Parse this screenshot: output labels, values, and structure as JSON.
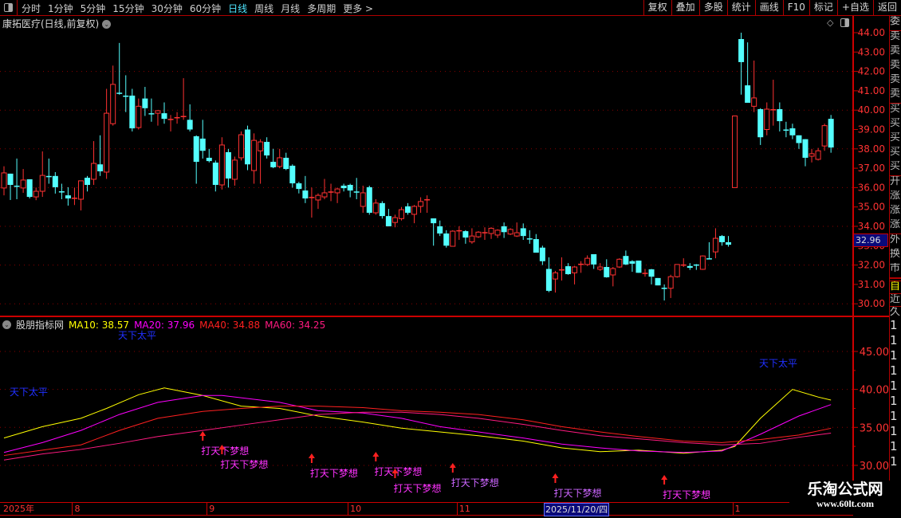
{
  "toolbar": {
    "periods": [
      "分时",
      "1分钟",
      "5分钟",
      "15分钟",
      "30分钟",
      "60分钟",
      "日线",
      "周线",
      "月线",
      "多周期",
      "更多 >"
    ],
    "active_period": "日线",
    "buttons": [
      "复权",
      "叠加",
      "多股",
      "统计",
      "画线",
      "F10",
      "标记",
      "+自选",
      "返回"
    ]
  },
  "chart": {
    "title": "康拓医疗(日线,前复权)",
    "last_price": "32.96",
    "price_axis": [
      "44.00",
      "43.00",
      "42.00",
      "41.00",
      "40.00",
      "39.00",
      "38.00",
      "37.00",
      "36.00",
      "35.00",
      "34.00",
      "33.00",
      "32.00",
      "31.00",
      "30.00"
    ],
    "colors": {
      "up": "#ff3232",
      "down": "#54ffff",
      "grid": "#8b0000",
      "axis": "#ff3333"
    },
    "candles_ohlc": [
      [
        35.98,
        37.1,
        35.6,
        36.76
      ],
      [
        36.72,
        36.72,
        35.36,
        36.14
      ],
      [
        36.1,
        37.5,
        35.4,
        36.1
      ],
      [
        35.98,
        36.96,
        35.73,
        36.39
      ],
      [
        36.43,
        36.43,
        35.44,
        35.52
      ],
      [
        35.52,
        36.0,
        35.35,
        35.81
      ],
      [
        35.81,
        37.87,
        35.52,
        36.63
      ],
      [
        36.6,
        37.5,
        36.2,
        36.6
      ],
      [
        36.6,
        36.8,
        35.69,
        36.02
      ],
      [
        35.81,
        36.2,
        35.4,
        35.81
      ],
      [
        35.6,
        36.02,
        35.07,
        35.44
      ],
      [
        35.48,
        36.0,
        35.1,
        35.48
      ],
      [
        35.4,
        36.3,
        34.82,
        36.35
      ],
      [
        36.51,
        36.6,
        35.8,
        36.14
      ],
      [
        36.43,
        38.4,
        36.14,
        37.25
      ],
      [
        37.2,
        38.7,
        36.6,
        36.84
      ],
      [
        36.8,
        41.1,
        36.45,
        39.84
      ],
      [
        39.3,
        42.3,
        39.2,
        41.33
      ],
      [
        40.9,
        43.47,
        40.8,
        40.9
      ],
      [
        40.75,
        41.8,
        39.9,
        40.75
      ],
      [
        40.75,
        41.1,
        38.9,
        39.06
      ],
      [
        39.1,
        40.6,
        39.0,
        40.2
      ],
      [
        40.6,
        41.2,
        39.7,
        40.1
      ],
      [
        39.84,
        40.6,
        39.4,
        39.84
      ],
      [
        39.84,
        40.0,
        39.2,
        39.97
      ],
      [
        39.84,
        40.4,
        39.3,
        39.55
      ],
      [
        39.55,
        39.75,
        38.9,
        39.55
      ],
      [
        39.64,
        39.9,
        39.3,
        39.64
      ],
      [
        39.7,
        41.65,
        39.5,
        39.7
      ],
      [
        39.5,
        40.3,
        38.9,
        39.0
      ],
      [
        38.65,
        38.7,
        36.2,
        37.33
      ],
      [
        38.53,
        39.5,
        37.5,
        37.9
      ],
      [
        37.54,
        38.0,
        37.3,
        37.37
      ],
      [
        37.29,
        37.4,
        35.8,
        36.14
      ],
      [
        36.14,
        38.6,
        35.9,
        38.2
      ],
      [
        37.83,
        38.0,
        36.0,
        36.47
      ],
      [
        36.43,
        37.6,
        36.1,
        37.42
      ],
      [
        37.54,
        38.9,
        37.4,
        38.73
      ],
      [
        39.0,
        39.2,
        36.9,
        37.2
      ],
      [
        36.88,
        38.8,
        36.2,
        38.44
      ],
      [
        37.9,
        38.5,
        36.2,
        38.36
      ],
      [
        38.36,
        38.6,
        37.5,
        37.66
      ],
      [
        37.33,
        38.0,
        37.0,
        37.05
      ],
      [
        37.09,
        38.0,
        37.0,
        37.54
      ],
      [
        37.54,
        37.8,
        36.9,
        36.96
      ],
      [
        37.13,
        37.2,
        36.0,
        36.22
      ],
      [
        36.22,
        36.3,
        35.7,
        35.93
      ],
      [
        35.85,
        36.6,
        35.2,
        35.44
      ],
      [
        35.52,
        36.0,
        34.45,
        35.52
      ],
      [
        35.36,
        35.7,
        34.9,
        35.6
      ],
      [
        35.52,
        36.45,
        35.4,
        35.73
      ],
      [
        35.8,
        36.2,
        35.3,
        35.8
      ],
      [
        35.73,
        36.0,
        35.2,
        35.93
      ],
      [
        36.1,
        36.2,
        35.8,
        35.97
      ],
      [
        36.14,
        36.2,
        35.5,
        35.85
      ],
      [
        35.8,
        36.5,
        35.4,
        35.8
      ],
      [
        35.03,
        36.1,
        34.7,
        35.73
      ],
      [
        36.02,
        36.1,
        34.6,
        34.7
      ],
      [
        34.7,
        35.4,
        34.6,
        35.2
      ],
      [
        35.2,
        35.3,
        34.4,
        34.53
      ],
      [
        34.53,
        34.9,
        34.0,
        34.0
      ],
      [
        34.2,
        34.6,
        33.95,
        34.45
      ],
      [
        34.4,
        35.0,
        34.3,
        34.86
      ],
      [
        35.03,
        35.2,
        34.6,
        34.7
      ],
      [
        34.62,
        35.1,
        34.16,
        35.03
      ],
      [
        35.03,
        35.5,
        34.7,
        35.28
      ],
      [
        35.4,
        35.6,
        34.7,
        35.4
      ],
      [
        34.41,
        34.41,
        33.0,
        34.16
      ],
      [
        34.0,
        34.3,
        33.5,
        33.63
      ],
      [
        33.63,
        33.8,
        32.9,
        33.0
      ],
      [
        32.97,
        33.8,
        32.95,
        33.75
      ],
      [
        33.8,
        34.0,
        33.3,
        33.8
      ],
      [
        33.75,
        33.8,
        33.1,
        33.42
      ],
      [
        33.2,
        33.9,
        33.1,
        33.5
      ],
      [
        33.46,
        33.75,
        33.4,
        33.7
      ],
      [
        33.7,
        33.95,
        33.3,
        33.7
      ],
      [
        33.63,
        33.95,
        33.35,
        33.9
      ],
      [
        33.55,
        33.85,
        33.4,
        33.8
      ],
      [
        34.0,
        34.2,
        33.4,
        33.7
      ],
      [
        33.6,
        33.9,
        33.55,
        33.84
      ],
      [
        33.5,
        34.2,
        33.45,
        33.67
      ],
      [
        33.9,
        34.15,
        33.3,
        33.5
      ],
      [
        33.38,
        33.8,
        33.1,
        33.38
      ],
      [
        33.34,
        33.6,
        33.3,
        32.64
      ],
      [
        32.9,
        33.0,
        32.0,
        32.2
      ],
      [
        31.8,
        32.4,
        30.6,
        30.67
      ],
      [
        31.28,
        31.7,
        30.58,
        31.6
      ],
      [
        31.78,
        32.4,
        31.2,
        31.78
      ],
      [
        31.94,
        32.1,
        31.5,
        31.53
      ],
      [
        31.6,
        31.95,
        31.0,
        31.9
      ],
      [
        32.07,
        32.2,
        31.6,
        32.07
      ],
      [
        32.03,
        32.5,
        31.95,
        32.35
      ],
      [
        32.56,
        32.56,
        31.8,
        32.03
      ],
      [
        31.78,
        32.1,
        31.7,
        31.9
      ],
      [
        31.9,
        32.3,
        31.35,
        31.37
      ],
      [
        31.49,
        31.9,
        30.9,
        31.82
      ],
      [
        31.9,
        32.35,
        31.85,
        32.3
      ],
      [
        32.47,
        32.75,
        32.0,
        32.03
      ],
      [
        32.2,
        32.25,
        31.65,
        32.07
      ],
      [
        32.23,
        32.23,
        31.6,
        31.6
      ],
      [
        31.6,
        31.8,
        31.4,
        31.6
      ],
      [
        31.78,
        31.8,
        31.0,
        31.4
      ],
      [
        31.33,
        31.33,
        30.95,
        30.95
      ],
      [
        30.83,
        31.0,
        30.17,
        30.83
      ],
      [
        30.8,
        31.5,
        30.3,
        31.4
      ],
      [
        31.4,
        32.03,
        31.35,
        32.03
      ],
      [
        32.03,
        32.35,
        31.9,
        32.03
      ],
      [
        31.95,
        32.1,
        31.75,
        31.86
      ],
      [
        32.03,
        32.05,
        31.75,
        31.97
      ],
      [
        31.78,
        32.5,
        31.75,
        32.47
      ],
      [
        32.35,
        33.18,
        32.3,
        32.35
      ],
      [
        32.68,
        33.9,
        32.35,
        33.38
      ],
      [
        33.5,
        33.55,
        33.0,
        33.18
      ],
      [
        33.18,
        33.5,
        32.95,
        33.05
      ],
      [
        36.0,
        39.7,
        36.0,
        39.7
      ],
      [
        43.67,
        44.0,
        40.8,
        42.48
      ],
      [
        41.28,
        43.5,
        40.6,
        40.38
      ],
      [
        40.2,
        42.56,
        39.9,
        40.63
      ],
      [
        40.05,
        40.1,
        38.2,
        38.6
      ],
      [
        39.0,
        40.4,
        38.7,
        40.05
      ],
      [
        40.05,
        41.57,
        39.2,
        40.05
      ],
      [
        40.05,
        40.4,
        38.9,
        39.43
      ],
      [
        39.0,
        39.4,
        38.6,
        39.0
      ],
      [
        39.06,
        39.3,
        38.5,
        38.7
      ],
      [
        38.7,
        38.7,
        38.0,
        38.3
      ],
      [
        38.5,
        38.5,
        37.1,
        37.54
      ],
      [
        37.62,
        38.0,
        37.3,
        37.75
      ],
      [
        37.46,
        38.05,
        37.4,
        37.9
      ],
      [
        38.15,
        39.3,
        37.9,
        39.2
      ],
      [
        39.55,
        39.75,
        37.8,
        38.07
      ]
    ]
  },
  "indicator": {
    "name": "股朋指标网",
    "legend": [
      {
        "label": "MA10: 38.57",
        "color": "#ffff00"
      },
      {
        "label": "MA20: 37.96",
        "color": "#ff00ff"
      },
      {
        "label": "MA40: 34.88",
        "color": "#ff2020"
      },
      {
        "label": "MA60: 34.25",
        "color": "#ff1a80"
      }
    ],
    "axis": [
      "45.00",
      "40.00",
      "35.00",
      "30.00"
    ],
    "series": [
      {
        "color": "#ffff00",
        "points": [
          [
            0,
            33.6
          ],
          [
            6,
            35.1
          ],
          [
            12,
            36.2
          ],
          [
            16,
            37.5
          ],
          [
            21,
            39.3
          ],
          [
            25,
            40.2
          ],
          [
            31,
            39.2
          ],
          [
            37,
            37.8
          ],
          [
            43,
            37.5
          ],
          [
            49,
            36.5
          ],
          [
            56,
            35.7
          ],
          [
            62,
            34.9
          ],
          [
            68,
            34.4
          ],
          [
            74,
            33.9
          ],
          [
            81,
            33.2
          ],
          [
            87,
            32.3
          ],
          [
            93,
            31.8
          ],
          [
            99,
            32.0
          ],
          [
            106,
            31.6
          ],
          [
            112,
            32.0
          ],
          [
            114,
            32.5
          ],
          [
            118,
            36.2
          ],
          [
            123,
            40.0
          ],
          [
            127,
            39.0
          ],
          [
            129,
            38.6
          ]
        ]
      },
      {
        "color": "#ff00ff",
        "points": [
          [
            0,
            31.7
          ],
          [
            6,
            33.0
          ],
          [
            12,
            34.6
          ],
          [
            18,
            36.7
          ],
          [
            24,
            38.3
          ],
          [
            31,
            39.2
          ],
          [
            34,
            39.2
          ],
          [
            43,
            38.3
          ],
          [
            49,
            37.2
          ],
          [
            56,
            36.9
          ],
          [
            62,
            36.2
          ],
          [
            68,
            35.1
          ],
          [
            74,
            34.4
          ],
          [
            81,
            33.6
          ],
          [
            87,
            32.8
          ],
          [
            93,
            32.3
          ],
          [
            99,
            31.9
          ],
          [
            106,
            31.7
          ],
          [
            112,
            31.9
          ],
          [
            118,
            34.1
          ],
          [
            124,
            36.5
          ],
          [
            129,
            38.0
          ]
        ]
      },
      {
        "color": "#ff2020",
        "points": [
          [
            0,
            31.3
          ],
          [
            6,
            32.0
          ],
          [
            12,
            32.7
          ],
          [
            18,
            34.6
          ],
          [
            24,
            36.2
          ],
          [
            31,
            37.1
          ],
          [
            37,
            37.5
          ],
          [
            43,
            37.8
          ],
          [
            49,
            37.8
          ],
          [
            56,
            37.6
          ],
          [
            62,
            37.2
          ],
          [
            68,
            37.0
          ],
          [
            74,
            36.7
          ],
          [
            81,
            36.0
          ],
          [
            87,
            35.1
          ],
          [
            93,
            34.4
          ],
          [
            99,
            33.8
          ],
          [
            106,
            33.2
          ],
          [
            112,
            33.0
          ],
          [
            118,
            33.4
          ],
          [
            124,
            34.0
          ],
          [
            129,
            34.88
          ]
        ]
      },
      {
        "color": "#ff1a80",
        "points": [
          [
            0,
            30.7
          ],
          [
            6,
            31.5
          ],
          [
            12,
            32.1
          ],
          [
            18,
            32.9
          ],
          [
            24,
            33.8
          ],
          [
            31,
            34.6
          ],
          [
            37,
            35.3
          ],
          [
            43,
            36.0
          ],
          [
            49,
            36.7
          ],
          [
            56,
            37.0
          ],
          [
            62,
            37.0
          ],
          [
            68,
            36.7
          ],
          [
            74,
            36.2
          ],
          [
            81,
            35.4
          ],
          [
            87,
            34.6
          ],
          [
            93,
            33.9
          ],
          [
            99,
            33.5
          ],
          [
            106,
            33.0
          ],
          [
            112,
            32.7
          ],
          [
            118,
            32.9
          ],
          [
            124,
            33.7
          ],
          [
            129,
            34.25
          ]
        ]
      }
    ],
    "calm_label": "天下太平",
    "signal_label": "打天下梦想",
    "signal_indices": [
      31,
      34,
      48,
      58,
      61,
      70,
      86,
      103
    ],
    "signal_colors": {
      "arrow": "#ff2020",
      "text": "#ff33ff",
      "text_alt": "#cc66ff"
    }
  },
  "xaxis": {
    "labels": [
      {
        "text": "2025年",
        "index": 0
      },
      {
        "text": "8",
        "index": 11
      },
      {
        "text": "9",
        "index": 32
      },
      {
        "text": "10",
        "index": 54
      },
      {
        "text": "11",
        "index": 71
      },
      {
        "text": "1",
        "index": 114
      }
    ],
    "cursor_date": "2025/11/20/四"
  },
  "sidebar": {
    "tabs": [
      "委",
      "卖",
      "卖",
      "卖",
      "卖",
      "卖",
      "买",
      "买",
      "买",
      "买",
      "买",
      "开",
      "涨",
      "涨",
      "涨",
      "外",
      "换",
      "市"
    ],
    "tabs2": [
      "自",
      "近",
      "久"
    ],
    "rows": [
      "1",
      "1",
      "1",
      "1",
      "1",
      "1",
      "1",
      "1",
      "1",
      "1"
    ]
  },
  "watermark": {
    "title": "乐淘公式网",
    "url": "www.60lt.com"
  }
}
